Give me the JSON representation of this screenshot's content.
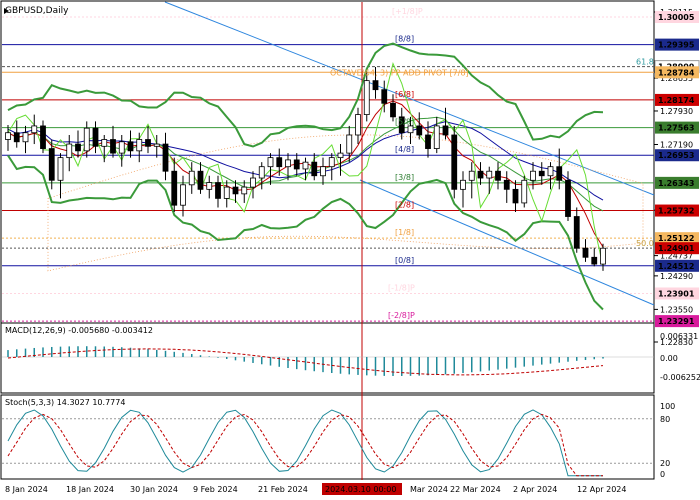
{
  "chart_data": {
    "type": "candlestick",
    "title": "GBPUSD,Daily",
    "colors": {
      "bull": "#ffffff",
      "bear": "#000000",
      "candle_line": "#000000",
      "bollinger": "#3a9a3a",
      "ichimoku_cloud": "#f0a060",
      "blue_line": "#1010a0",
      "red_line": "#c00000",
      "lime_line": "#66dd33",
      "trend": "#2e86de",
      "cursor": "#c00000",
      "label_red": "#cc0000",
      "label_blue": "#1b2a8c",
      "label_green": "#2e7d32",
      "label_pink": "#ffd6e0",
      "label_magenta": "#d81b9c",
      "label_navy": "#1a1a7a"
    },
    "price_axis_ticks": [
      "1.30115",
      "1.28655",
      "1.27930",
      "1.27190",
      "1.25740",
      "1.24737",
      "1.24290",
      "1.23550",
      "1.22830"
    ],
    "price_labels": [
      {
        "value": "1.30005",
        "color": "#ffd6e0",
        "text_color": "#000000"
      },
      {
        "value": "1.29395",
        "color": "#1b2a8c",
        "text_color": "#ffffff"
      },
      {
        "value": "1.28909",
        "color": "#ffffff",
        "text_color": "#000000"
      },
      {
        "value": "1.28784",
        "color": "#f5b860",
        "text_color": "#000000"
      },
      {
        "value": "1.28174",
        "color": "#cc0000",
        "text_color": "#ffffff"
      },
      {
        "value": "1.27563",
        "color": "#3a7d2e",
        "text_color": "#ffffff"
      },
      {
        "value": "1.26953",
        "color": "#1b2a8c",
        "text_color": "#ffffff"
      },
      {
        "value": "1.26343",
        "color": "#3a7d2e",
        "text_color": "#ffffff"
      },
      {
        "value": "1.25732",
        "color": "#cc0000",
        "text_color": "#ffffff"
      },
      {
        "value": "1.25122",
        "color": "#f5b860",
        "text_color": "#000000"
      },
      {
        "value": "1.24901",
        "color": "#cc0000",
        "text_color": "#ffffff"
      },
      {
        "value": "1.24512",
        "color": "#1b2a8c",
        "text_color": "#ffffff"
      },
      {
        "value": "1.23901",
        "color": "#ffd6e0",
        "text_color": "#000000"
      },
      {
        "value": "1.23291",
        "color": "#d81b9c",
        "text_color": "#ffffff"
      }
    ],
    "murrey_labels": [
      "[+1/8]P",
      "[8/8]",
      "[7/8]",
      "[6/8]",
      "[5/8]",
      "[4/8]",
      "[3/8]",
      "[2/8]",
      "[1/8]",
      "[0/8]",
      "[-1/8]P",
      "[-2/8]P"
    ],
    "octave_label": "OCTAVE(64, 3) PP ADD PIVOT [7/8]",
    "fib_labels": [
      "61.8",
      "50.0"
    ],
    "dates": [
      "8 Jan 2024",
      "18 Jan 2024",
      "30 Jan 2024",
      "9 Feb 2024",
      "21 Feb 2024",
      "2024.03.10 00:00",
      "Mar 2024",
      "22 Mar 2024",
      "2 Apr 2024",
      "12 Apr 2024"
    ],
    "candles": [
      [
        1.273,
        1.2762,
        1.2705,
        1.2745
      ],
      [
        1.2745,
        1.2772,
        1.2712,
        1.2725
      ],
      [
        1.2725,
        1.276,
        1.27,
        1.2745
      ],
      [
        1.2745,
        1.2785,
        1.272,
        1.276
      ],
      [
        1.276,
        1.2772,
        1.27,
        1.271
      ],
      [
        1.271,
        1.273,
        1.262,
        1.264
      ],
      [
        1.264,
        1.27,
        1.26,
        1.269
      ],
      [
        1.269,
        1.274,
        1.266,
        1.272
      ],
      [
        1.272,
        1.275,
        1.269,
        1.2705
      ],
      [
        1.2705,
        1.277,
        1.269,
        1.2755
      ],
      [
        1.2755,
        1.277,
        1.27,
        1.2715
      ],
      [
        1.2715,
        1.274,
        1.268,
        1.273
      ],
      [
        1.273,
        1.276,
        1.269,
        1.27
      ],
      [
        1.27,
        1.274,
        1.267,
        1.2725
      ],
      [
        1.2725,
        1.275,
        1.269,
        1.2705
      ],
      [
        1.2705,
        1.2745,
        1.268,
        1.273
      ],
      [
        1.273,
        1.276,
        1.27,
        1.2715
      ],
      [
        1.2715,
        1.274,
        1.269,
        1.272
      ],
      [
        1.272,
        1.2745,
        1.264,
        1.266
      ],
      [
        1.266,
        1.269,
        1.257,
        1.2585
      ],
      [
        1.2585,
        1.265,
        1.256,
        1.263
      ],
      [
        1.263,
        1.268,
        1.261,
        1.266
      ],
      [
        1.266,
        1.268,
        1.261,
        1.262
      ],
      [
        1.262,
        1.265,
        1.26,
        1.2635
      ],
      [
        1.2635,
        1.265,
        1.258,
        1.26
      ],
      [
        1.26,
        1.264,
        1.258,
        1.2625
      ],
      [
        1.2625,
        1.264,
        1.259,
        1.261
      ],
      [
        1.261,
        1.264,
        1.259,
        1.2625
      ],
      [
        1.2625,
        1.266,
        1.26,
        1.2645
      ],
      [
        1.2645,
        1.268,
        1.262,
        1.267
      ],
      [
        1.267,
        1.27,
        1.263,
        1.269
      ],
      [
        1.269,
        1.271,
        1.265,
        1.267
      ],
      [
        1.267,
        1.27,
        1.264,
        1.2685
      ],
      [
        1.2685,
        1.27,
        1.265,
        1.2665
      ],
      [
        1.2665,
        1.269,
        1.264,
        1.268
      ],
      [
        1.268,
        1.27,
        1.264,
        1.265
      ],
      [
        1.265,
        1.269,
        1.263,
        1.267
      ],
      [
        1.267,
        1.27,
        1.264,
        1.269
      ],
      [
        1.269,
        1.272,
        1.265,
        1.27
      ],
      [
        1.27,
        1.276,
        1.268,
        1.274
      ],
      [
        1.274,
        1.28,
        1.272,
        1.2785
      ],
      [
        1.2785,
        1.288,
        1.277,
        1.286
      ],
      [
        1.286,
        1.289,
        1.282,
        1.284
      ],
      [
        1.284,
        1.286,
        1.279,
        1.281
      ],
      [
        1.281,
        1.283,
        1.277,
        1.278
      ],
      [
        1.278,
        1.28,
        1.273,
        1.2745
      ],
      [
        1.2745,
        1.278,
        1.272,
        1.276
      ],
      [
        1.276,
        1.279,
        1.273,
        1.274
      ],
      [
        1.274,
        1.277,
        1.269,
        1.271
      ],
      [
        1.271,
        1.278,
        1.27,
        1.276
      ],
      [
        1.276,
        1.28,
        1.273,
        1.274
      ],
      [
        1.274,
        1.276,
        1.26,
        1.262
      ],
      [
        1.262,
        1.266,
        1.258,
        1.264
      ],
      [
        1.264,
        1.268,
        1.26,
        1.266
      ],
      [
        1.266,
        1.268,
        1.263,
        1.2645
      ],
      [
        1.2645,
        1.267,
        1.261,
        1.266
      ],
      [
        1.266,
        1.268,
        1.262,
        1.264
      ],
      [
        1.264,
        1.266,
        1.259,
        1.262
      ],
      [
        1.262,
        1.264,
        1.257,
        1.259
      ],
      [
        1.259,
        1.265,
        1.258,
        1.264
      ],
      [
        1.264,
        1.268,
        1.262,
        1.266
      ],
      [
        1.266,
        1.268,
        1.263,
        1.265
      ],
      [
        1.265,
        1.268,
        1.262,
        1.267
      ],
      [
        1.267,
        1.271,
        1.262,
        1.264
      ],
      [
        1.264,
        1.266,
        1.255,
        1.256
      ],
      [
        1.256,
        1.258,
        1.248,
        1.249
      ],
      [
        1.249,
        1.251,
        1.246,
        1.247
      ],
      [
        1.247,
        1.249,
        1.245,
        1.2455
      ],
      [
        1.2455,
        1.25,
        1.244,
        1.249
      ]
    ]
  }
}
